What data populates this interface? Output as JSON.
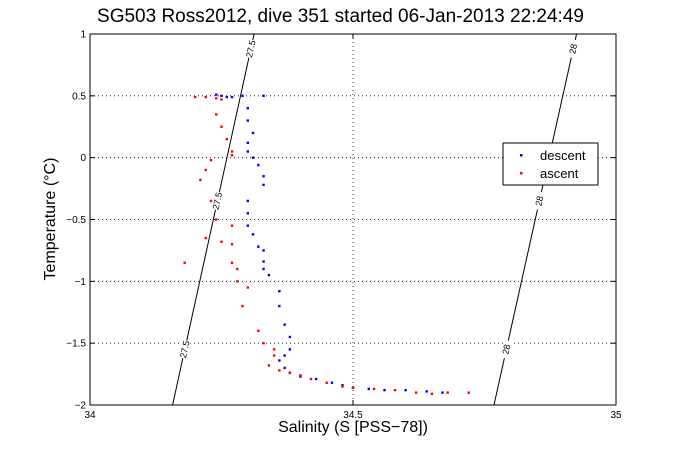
{
  "chart_data": {
    "type": "scatter",
    "title": "SG503 Ross2012, dive 351 started 06-Jan-2013 22:24:49",
    "xlabel": "Salinity (S [PSS−78])",
    "ylabel": "Temperature (°C)",
    "xlim": [
      34,
      35
    ],
    "ylim": [
      -2,
      1
    ],
    "xticks": [
      34,
      34.5,
      35
    ],
    "xtick_labels": [
      "34",
      "34.5",
      "35"
    ],
    "yticks": [
      1,
      0.5,
      0,
      -0.5,
      -1,
      -1.5,
      -2
    ],
    "ytick_labels": [
      "1",
      "0.5",
      "0",
      "−0.5",
      "−1",
      "−1.5",
      "−2"
    ],
    "grid": true,
    "legend_position": "right",
    "colors": {
      "descent": "#0000ff",
      "ascent": "#ff0000",
      "axis": "#000000"
    },
    "series": [
      {
        "name": "descent",
        "color": "#0000ff",
        "points": [
          [
            34.24,
            0.51
          ],
          [
            34.25,
            0.5
          ],
          [
            34.26,
            0.49
          ],
          [
            34.27,
            0.49
          ],
          [
            34.29,
            0.5
          ],
          [
            34.33,
            0.5
          ],
          [
            34.3,
            0.4
          ],
          [
            34.3,
            0.3
          ],
          [
            34.31,
            0.2
          ],
          [
            34.3,
            0.12
          ],
          [
            34.3,
            0.05
          ],
          [
            34.31,
            0.0
          ],
          [
            34.32,
            -0.06
          ],
          [
            34.33,
            -0.15
          ],
          [
            34.33,
            -0.22
          ],
          [
            34.3,
            -0.35
          ],
          [
            34.3,
            -0.45
          ],
          [
            34.3,
            -0.55
          ],
          [
            34.31,
            -0.62
          ],
          [
            34.32,
            -0.72
          ],
          [
            34.33,
            -0.75
          ],
          [
            34.33,
            -0.84
          ],
          [
            34.33,
            -0.9
          ],
          [
            34.34,
            -0.95
          ],
          [
            34.36,
            -1.08
          ],
          [
            34.36,
            -1.2
          ],
          [
            34.37,
            -1.35
          ],
          [
            34.38,
            -1.45
          ],
          [
            34.38,
            -1.55
          ],
          [
            34.37,
            -1.6
          ],
          [
            34.36,
            -1.64
          ],
          [
            34.37,
            -1.7
          ],
          [
            34.38,
            -1.74
          ],
          [
            34.4,
            -1.77
          ],
          [
            34.43,
            -1.79
          ],
          [
            34.46,
            -1.82
          ],
          [
            34.48,
            -1.84
          ],
          [
            34.5,
            -1.86
          ],
          [
            34.53,
            -1.87
          ],
          [
            34.56,
            -1.88
          ],
          [
            34.6,
            -1.88
          ],
          [
            34.64,
            -1.89
          ],
          [
            34.67,
            -1.9
          ]
        ]
      },
      {
        "name": "ascent",
        "color": "#ff0000",
        "points": [
          [
            34.2,
            0.49
          ],
          [
            34.22,
            0.49
          ],
          [
            34.24,
            0.48
          ],
          [
            34.25,
            0.47
          ],
          [
            34.24,
            0.35
          ],
          [
            34.25,
            0.25
          ],
          [
            34.26,
            0.15
          ],
          [
            34.27,
            0.05
          ],
          [
            34.27,
            0.02
          ],
          [
            34.23,
            -0.02
          ],
          [
            34.22,
            -0.1
          ],
          [
            34.21,
            -0.18
          ],
          [
            34.23,
            -0.35
          ],
          [
            34.24,
            -0.5
          ],
          [
            34.22,
            -0.65
          ],
          [
            34.25,
            -0.68
          ],
          [
            34.27,
            -0.7
          ],
          [
            34.27,
            -0.85
          ],
          [
            34.28,
            -0.9
          ],
          [
            34.28,
            -1.0
          ],
          [
            34.3,
            -1.05
          ],
          [
            34.29,
            -1.2
          ],
          [
            34.32,
            -1.4
          ],
          [
            34.33,
            -1.5
          ],
          [
            34.35,
            -1.55
          ],
          [
            34.35,
            -1.6
          ],
          [
            34.34,
            -1.68
          ],
          [
            34.36,
            -1.72
          ],
          [
            34.38,
            -1.74
          ],
          [
            34.4,
            -1.76
          ],
          [
            34.42,
            -1.79
          ],
          [
            34.45,
            -1.82
          ],
          [
            34.48,
            -1.85
          ],
          [
            34.5,
            -1.86
          ],
          [
            34.54,
            -1.87
          ],
          [
            34.58,
            -1.88
          ],
          [
            34.62,
            -1.9
          ],
          [
            34.65,
            -1.91
          ],
          [
            34.68,
            -1.9
          ],
          [
            34.72,
            -1.9
          ],
          [
            34.18,
            -0.85
          ],
          [
            34.27,
            -0.55
          ]
        ]
      }
    ],
    "density_contours": [
      {
        "label": "27.5",
        "points": [
          [
            34.157,
            -2
          ],
          [
            34.312,
            1
          ]
        ]
      },
      {
        "label": "28",
        "points": [
          [
            34.768,
            -2
          ],
          [
            34.925,
            1
          ]
        ]
      }
    ]
  }
}
